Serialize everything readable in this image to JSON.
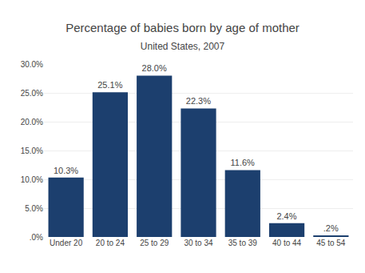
{
  "chart_data": {
    "type": "bar",
    "title": "Percentage of babies born by age of mother",
    "subtitle": "United States, 2007",
    "categories": [
      "Under 20",
      "20 to 24",
      "25 to 29",
      "30 to 34",
      "35 to 39",
      "40 to 44",
      "45 to 54"
    ],
    "values": [
      10.3,
      25.1,
      28.0,
      22.3,
      11.6,
      2.4,
      0.2
    ],
    "value_labels": [
      "10.3%",
      "25.1%",
      "28.0%",
      "22.3%",
      "11.6%",
      "2.4%",
      ".2%"
    ],
    "data_labels": true,
    "color": "#1c3f6e",
    "ylim": [
      0,
      30
    ],
    "yticks": [
      {
        "value": 0,
        "label": ".0%"
      },
      {
        "value": 5,
        "label": "5.0%"
      },
      {
        "value": 10,
        "label": "10.0%"
      },
      {
        "value": 15,
        "label": "15.0%"
      },
      {
        "value": 20,
        "label": "20.0%"
      },
      {
        "value": 25,
        "label": "25.0%"
      },
      {
        "value": 30,
        "label": "30.0%"
      }
    ],
    "grid": true
  }
}
